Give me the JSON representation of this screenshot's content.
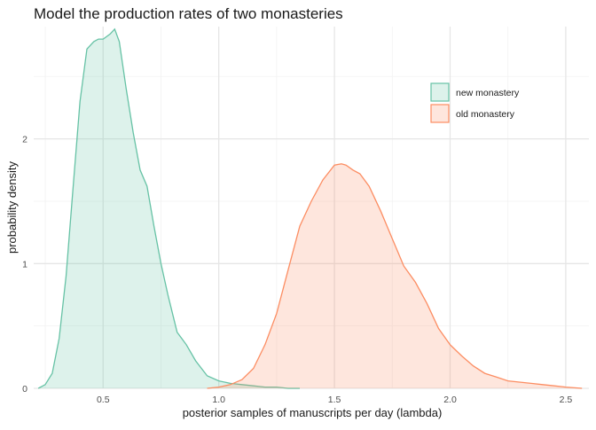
{
  "chart_data": {
    "type": "area",
    "title": "Model the production rates of two monasteries",
    "xlabel": "posterior samples of manuscripts per day (lambda)",
    "ylabel": "probability density",
    "xlim": [
      0.2,
      2.6
    ],
    "ylim": [
      0,
      2.9
    ],
    "x_ticks": [
      0.5,
      1.0,
      1.5,
      2.0,
      2.5
    ],
    "x_tick_labels": [
      "0.5",
      "1.0",
      "1.5",
      "2.0",
      "2.5"
    ],
    "y_ticks": [
      0,
      1,
      2
    ],
    "y_tick_labels": [
      "0",
      "1",
      "2"
    ],
    "grid": true,
    "legend_position": "top-right",
    "series": [
      {
        "name": "new monastery",
        "line_color": "#66c2a5",
        "fill_color": "#66c2a5",
        "fill_opacity": 0.22,
        "x": [
          0.22,
          0.25,
          0.28,
          0.31,
          0.34,
          0.37,
          0.4,
          0.43,
          0.46,
          0.48,
          0.5,
          0.53,
          0.55,
          0.57,
          0.6,
          0.63,
          0.66,
          0.69,
          0.72,
          0.75,
          0.78,
          0.82,
          0.86,
          0.9,
          0.95,
          1.0,
          1.05,
          1.1,
          1.15,
          1.2,
          1.25,
          1.3,
          1.35
        ],
        "y": [
          0.0,
          0.03,
          0.12,
          0.4,
          0.9,
          1.6,
          2.3,
          2.72,
          2.78,
          2.8,
          2.8,
          2.84,
          2.88,
          2.78,
          2.4,
          2.05,
          1.75,
          1.62,
          1.3,
          1.0,
          0.75,
          0.45,
          0.35,
          0.22,
          0.1,
          0.06,
          0.04,
          0.03,
          0.02,
          0.01,
          0.01,
          0.0,
          0.0
        ]
      },
      {
        "name": "old monastery",
        "line_color": "#fc8d62",
        "fill_color": "#fc8d62",
        "fill_opacity": 0.22,
        "x": [
          0.95,
          1.0,
          1.05,
          1.1,
          1.15,
          1.2,
          1.25,
          1.3,
          1.35,
          1.4,
          1.45,
          1.5,
          1.53,
          1.55,
          1.58,
          1.61,
          1.65,
          1.7,
          1.75,
          1.8,
          1.85,
          1.9,
          1.95,
          2.0,
          2.05,
          2.1,
          2.15,
          2.2,
          2.25,
          2.3,
          2.35,
          2.4,
          2.45,
          2.5,
          2.57
        ],
        "y": [
          0.0,
          0.01,
          0.03,
          0.07,
          0.16,
          0.35,
          0.6,
          0.95,
          1.3,
          1.5,
          1.67,
          1.79,
          1.8,
          1.79,
          1.75,
          1.72,
          1.62,
          1.42,
          1.2,
          0.98,
          0.85,
          0.68,
          0.48,
          0.35,
          0.26,
          0.18,
          0.12,
          0.09,
          0.06,
          0.05,
          0.04,
          0.03,
          0.02,
          0.01,
          0.0
        ]
      }
    ]
  }
}
